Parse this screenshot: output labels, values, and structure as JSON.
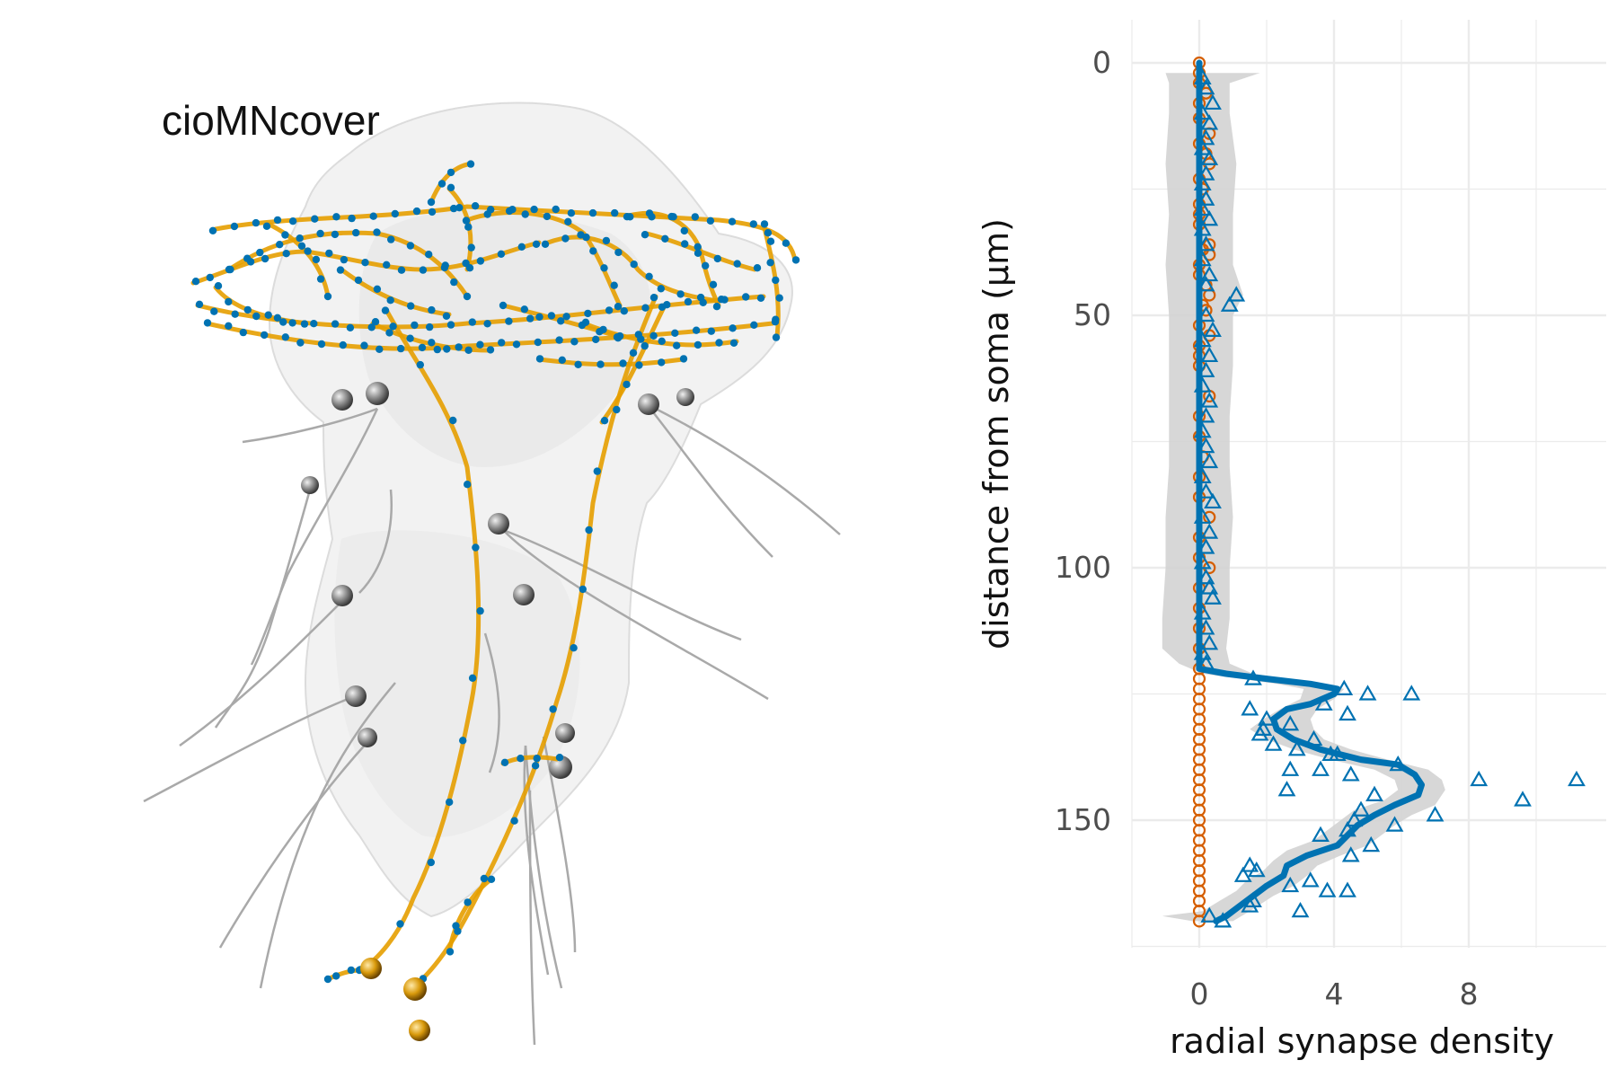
{
  "left_panel": {
    "title": "cioMNcover"
  },
  "chart_data": {
    "type": "scatter",
    "xlabel": "radial synapse density",
    "ylabel": "distance from soma (µm)",
    "xlim": [
      -1,
      12
    ],
    "ylim": [
      0,
      175
    ],
    "y_reversed": true,
    "x_ticks": [
      0,
      4,
      8
    ],
    "x_tick_labels": [
      "0",
      "4",
      "8"
    ],
    "y_ticks": [
      0,
      50,
      100,
      150
    ],
    "y_tick_labels": [
      "0",
      "50",
      "100",
      "150"
    ],
    "grid": true,
    "legend": "none",
    "colors": {
      "triangles": "#0072B2",
      "circles": "#D55E00",
      "band": "#d3d3d3",
      "grid": "#ebebeb"
    },
    "series": [
      {
        "marker": "triangle",
        "points": [
          [
            0.1,
            3
          ],
          [
            0.2,
            5
          ],
          [
            0.4,
            8
          ],
          [
            0.1,
            10
          ],
          [
            0.3,
            12
          ],
          [
            0.2,
            15
          ],
          [
            0.1,
            17
          ],
          [
            0.3,
            19
          ],
          [
            0.2,
            22
          ],
          [
            0.1,
            24
          ],
          [
            0.2,
            27
          ],
          [
            0.1,
            29
          ],
          [
            0.3,
            31
          ],
          [
            0.1,
            33
          ],
          [
            0.2,
            36
          ],
          [
            0.1,
            39
          ],
          [
            0.3,
            42
          ],
          [
            0.2,
            44
          ],
          [
            1.1,
            46
          ],
          [
            0.9,
            48
          ],
          [
            0.2,
            50
          ],
          [
            0.4,
            53
          ],
          [
            0.1,
            55
          ],
          [
            0.3,
            58
          ],
          [
            0.2,
            61
          ],
          [
            0.1,
            64
          ],
          [
            0.3,
            67
          ],
          [
            0.2,
            70
          ],
          [
            0.1,
            73
          ],
          [
            0.2,
            76
          ],
          [
            0.3,
            79
          ],
          [
            0.1,
            82
          ],
          [
            0.2,
            85
          ],
          [
            0.4,
            87
          ],
          [
            0.1,
            90
          ],
          [
            0.3,
            93
          ],
          [
            0.2,
            96
          ],
          [
            0.1,
            99
          ],
          [
            0.2,
            102
          ],
          [
            0.3,
            104
          ],
          [
            0.4,
            106
          ],
          [
            0.1,
            109
          ],
          [
            0.2,
            112
          ],
          [
            0.3,
            115
          ],
          [
            0.1,
            117
          ],
          [
            0.2,
            119
          ],
          [
            1.6,
            122
          ],
          [
            4.3,
            124
          ],
          [
            5.0,
            125
          ],
          [
            6.3,
            125
          ],
          [
            1.5,
            128
          ],
          [
            3.7,
            127
          ],
          [
            4.4,
            129
          ],
          [
            2.0,
            130
          ],
          [
            2.7,
            131
          ],
          [
            1.9,
            132
          ],
          [
            1.8,
            133
          ],
          [
            3.4,
            134
          ],
          [
            2.2,
            135
          ],
          [
            2.9,
            136
          ],
          [
            3.9,
            137
          ],
          [
            4.1,
            137
          ],
          [
            5.9,
            139
          ],
          [
            2.7,
            140
          ],
          [
            3.6,
            140
          ],
          [
            4.5,
            141
          ],
          [
            8.3,
            142
          ],
          [
            11.2,
            142
          ],
          [
            2.6,
            144
          ],
          [
            5.2,
            145
          ],
          [
            9.6,
            146
          ],
          [
            4.8,
            148
          ],
          [
            7.0,
            149
          ],
          [
            4.6,
            150
          ],
          [
            5.8,
            151
          ],
          [
            4.4,
            152
          ],
          [
            3.6,
            153
          ],
          [
            5.1,
            155
          ],
          [
            4.5,
            157
          ],
          [
            1.5,
            159
          ],
          [
            1.7,
            160
          ],
          [
            1.3,
            161
          ],
          [
            3.3,
            162
          ],
          [
            2.7,
            163
          ],
          [
            3.8,
            164
          ],
          [
            4.4,
            164
          ],
          [
            1.6,
            166
          ],
          [
            1.5,
            167
          ],
          [
            3.0,
            168
          ],
          [
            0.3,
            169
          ],
          [
            0.7,
            170
          ]
        ]
      },
      {
        "marker": "circle",
        "points": [
          [
            0,
            0
          ],
          [
            0,
            2
          ],
          [
            0,
            4
          ],
          [
            0.2,
            6
          ],
          [
            0,
            8
          ],
          [
            0,
            11
          ],
          [
            0.3,
            14
          ],
          [
            0,
            16
          ],
          [
            0.2,
            18
          ],
          [
            0.3,
            20
          ],
          [
            0,
            23
          ],
          [
            0.1,
            25
          ],
          [
            0,
            28
          ],
          [
            0,
            30
          ],
          [
            0,
            32
          ],
          [
            0.3,
            36
          ],
          [
            0.1,
            37
          ],
          [
            0.3,
            38
          ],
          [
            0,
            40
          ],
          [
            0,
            42
          ],
          [
            0.2,
            44
          ],
          [
            0.3,
            46
          ],
          [
            0.1,
            48
          ],
          [
            0.2,
            49
          ],
          [
            0,
            52
          ],
          [
            0.3,
            54
          ],
          [
            0,
            56
          ],
          [
            0,
            58
          ],
          [
            0,
            60
          ],
          [
            0.3,
            66
          ],
          [
            0,
            70
          ],
          [
            0,
            74
          ],
          [
            0.1,
            78
          ],
          [
            0,
            82
          ],
          [
            0,
            86
          ],
          [
            0.3,
            90
          ],
          [
            0,
            94
          ],
          [
            0,
            98
          ],
          [
            0.3,
            100
          ],
          [
            0,
            104
          ],
          [
            0,
            108
          ],
          [
            0,
            112
          ],
          [
            0,
            116
          ],
          [
            0,
            120
          ],
          [
            0,
            122
          ],
          [
            0,
            124
          ],
          [
            0,
            126
          ],
          [
            0,
            128
          ],
          [
            0,
            130
          ],
          [
            0,
            132
          ],
          [
            0,
            134
          ],
          [
            0,
            136
          ],
          [
            0,
            138
          ],
          [
            0,
            140
          ],
          [
            0,
            142
          ],
          [
            0,
            144
          ],
          [
            0,
            146
          ],
          [
            0,
            148
          ],
          [
            0,
            150
          ],
          [
            0,
            152
          ],
          [
            0,
            154
          ],
          [
            0,
            156
          ],
          [
            0,
            158
          ],
          [
            0,
            160
          ],
          [
            0,
            162
          ],
          [
            0,
            164
          ],
          [
            0,
            166
          ],
          [
            0,
            168
          ],
          [
            0,
            170
          ]
        ]
      }
    ],
    "smooth_line": {
      "points": [
        [
          0,
          0
        ],
        [
          0,
          20
        ],
        [
          0,
          40
        ],
        [
          0,
          60
        ],
        [
          0,
          80
        ],
        [
          0,
          100
        ],
        [
          0,
          116
        ],
        [
          0,
          120
        ],
        [
          0.8,
          121
        ],
        [
          2.0,
          122
        ],
        [
          3.3,
          123
        ],
        [
          4.1,
          124
        ],
        [
          4.0,
          125
        ],
        [
          3.3,
          127
        ],
        [
          2.6,
          128
        ],
        [
          2.2,
          130
        ],
        [
          2.3,
          132
        ],
        [
          2.8,
          134
        ],
        [
          3.6,
          136
        ],
        [
          4.8,
          138
        ],
        [
          5.9,
          139
        ],
        [
          6.4,
          141
        ],
        [
          6.6,
          143
        ],
        [
          6.5,
          145
        ],
        [
          5.8,
          147
        ],
        [
          5.2,
          149
        ],
        [
          4.7,
          151
        ],
        [
          4.4,
          153
        ],
        [
          4.1,
          155
        ],
        [
          3.2,
          157
        ],
        [
          2.6,
          159
        ],
        [
          2.5,
          161
        ],
        [
          2.0,
          163
        ],
        [
          1.6,
          165
        ],
        [
          1.2,
          167
        ],
        [
          0.8,
          169
        ],
        [
          0.5,
          170
        ]
      ]
    },
    "confidence_band": {
      "upper": [
        [
          1.8,
          2
        ],
        [
          0.9,
          4
        ],
        [
          0.9,
          10
        ],
        [
          1.1,
          20
        ],
        [
          1.0,
          30
        ],
        [
          1.0,
          40
        ],
        [
          1.3,
          46
        ],
        [
          1.0,
          50
        ],
        [
          1.0,
          60
        ],
        [
          0.9,
          70
        ],
        [
          0.9,
          80
        ],
        [
          1.0,
          90
        ],
        [
          0.9,
          100
        ],
        [
          0.9,
          110
        ],
        [
          0.8,
          116
        ],
        [
          0.9,
          119
        ],
        [
          1.6,
          121
        ],
        [
          2.6,
          122
        ],
        [
          3.6,
          123
        ],
        [
          4.3,
          124
        ],
        [
          4.0,
          126
        ],
        [
          3.5,
          128
        ],
        [
          3.3,
          130
        ],
        [
          3.4,
          132
        ],
        [
          3.7,
          134
        ],
        [
          4.5,
          136
        ],
        [
          5.6,
          138
        ],
        [
          6.8,
          140
        ],
        [
          7.2,
          142
        ],
        [
          7.3,
          144
        ],
        [
          7.0,
          147
        ],
        [
          6.3,
          149
        ],
        [
          5.8,
          151
        ],
        [
          5.4,
          153
        ],
        [
          5.0,
          155
        ],
        [
          4.2,
          157
        ],
        [
          3.5,
          159
        ],
        [
          3.2,
          161
        ],
        [
          2.8,
          163
        ],
        [
          2.2,
          165
        ],
        [
          1.5,
          168
        ],
        [
          1.0,
          170
        ]
      ],
      "lower": [
        [
          -1.0,
          2
        ],
        [
          -0.9,
          4
        ],
        [
          -0.9,
          10
        ],
        [
          -1.0,
          20
        ],
        [
          -0.9,
          30
        ],
        [
          -1.0,
          40
        ],
        [
          -0.9,
          50
        ],
        [
          -0.9,
          60
        ],
        [
          -0.9,
          70
        ],
        [
          -0.9,
          80
        ],
        [
          -1.0,
          90
        ],
        [
          -1.0,
          100
        ],
        [
          -1.1,
          110
        ],
        [
          -1.1,
          116
        ],
        [
          -0.6,
          119
        ],
        [
          0.1,
          121
        ],
        [
          1.2,
          122
        ],
        [
          2.3,
          123
        ],
        [
          3.1,
          124
        ],
        [
          3.0,
          126
        ],
        [
          2.4,
          128
        ],
        [
          1.9,
          130
        ],
        [
          1.5,
          132
        ],
        [
          2.0,
          134
        ],
        [
          2.8,
          136
        ],
        [
          3.9,
          138
        ],
        [
          5.2,
          140
        ],
        [
          5.8,
          142
        ],
        [
          5.9,
          144
        ],
        [
          5.5,
          146
        ],
        [
          4.6,
          148
        ],
        [
          4.2,
          150
        ],
        [
          3.8,
          152
        ],
        [
          3.4,
          154
        ],
        [
          2.6,
          156
        ],
        [
          2.2,
          158
        ],
        [
          1.9,
          160
        ],
        [
          1.4,
          162
        ],
        [
          1.1,
          164
        ],
        [
          0.6,
          166
        ],
        [
          0.1,
          168
        ],
        [
          -1.1,
          169
        ],
        [
          -0.2,
          170
        ]
      ]
    }
  }
}
